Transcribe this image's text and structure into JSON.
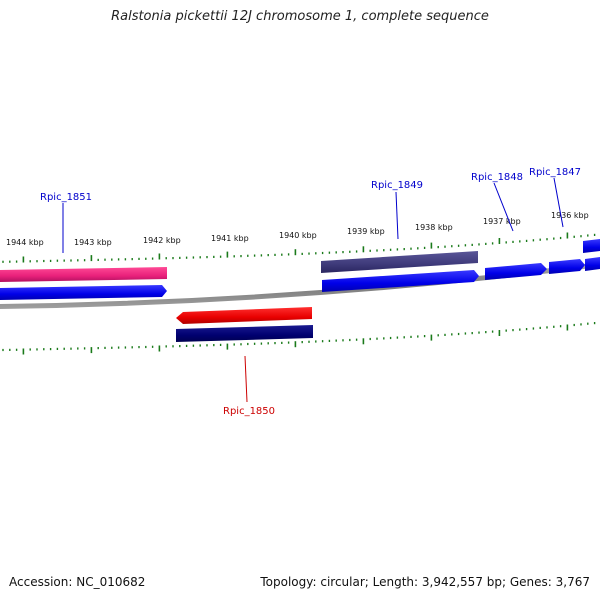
{
  "title": "Ralstonia pickettii 12J chromosome 1, complete sequence",
  "footer": {
    "accession": "Accession: NC_010682",
    "summary": "Topology: circular; Length: 3,942,557 bp; Genes: 3,767"
  },
  "scale": {
    "unit": "kbp",
    "ticks": [
      "1944 kbp",
      "1943 kbp",
      "1942 kbp",
      "1941 kbp",
      "1940 kbp",
      "1939 kbp",
      "1938 kbp",
      "1937 kbp",
      "1936 kbp"
    ]
  },
  "genes": [
    {
      "name": "Rpic_1851",
      "color": "#0000cc"
    },
    {
      "name": "Rpic_1849",
      "color": "#0000cc"
    },
    {
      "name": "Rpic_1848",
      "color": "#0000cc"
    },
    {
      "name": "Rpic_1847",
      "color": "#0000cc"
    },
    {
      "name": "Rpic_1850",
      "color": "#cc0000"
    }
  ],
  "colors": {
    "backbone": "#8a8a8a",
    "forward_cds": "#0000ee",
    "reverse_cds": "#ee0000",
    "forward_gene_pink": "#e8207a",
    "forward_gene_purple": "#3e3a7a",
    "reverse_gene_navy": "#000070",
    "tick": "#1a7a1a"
  }
}
